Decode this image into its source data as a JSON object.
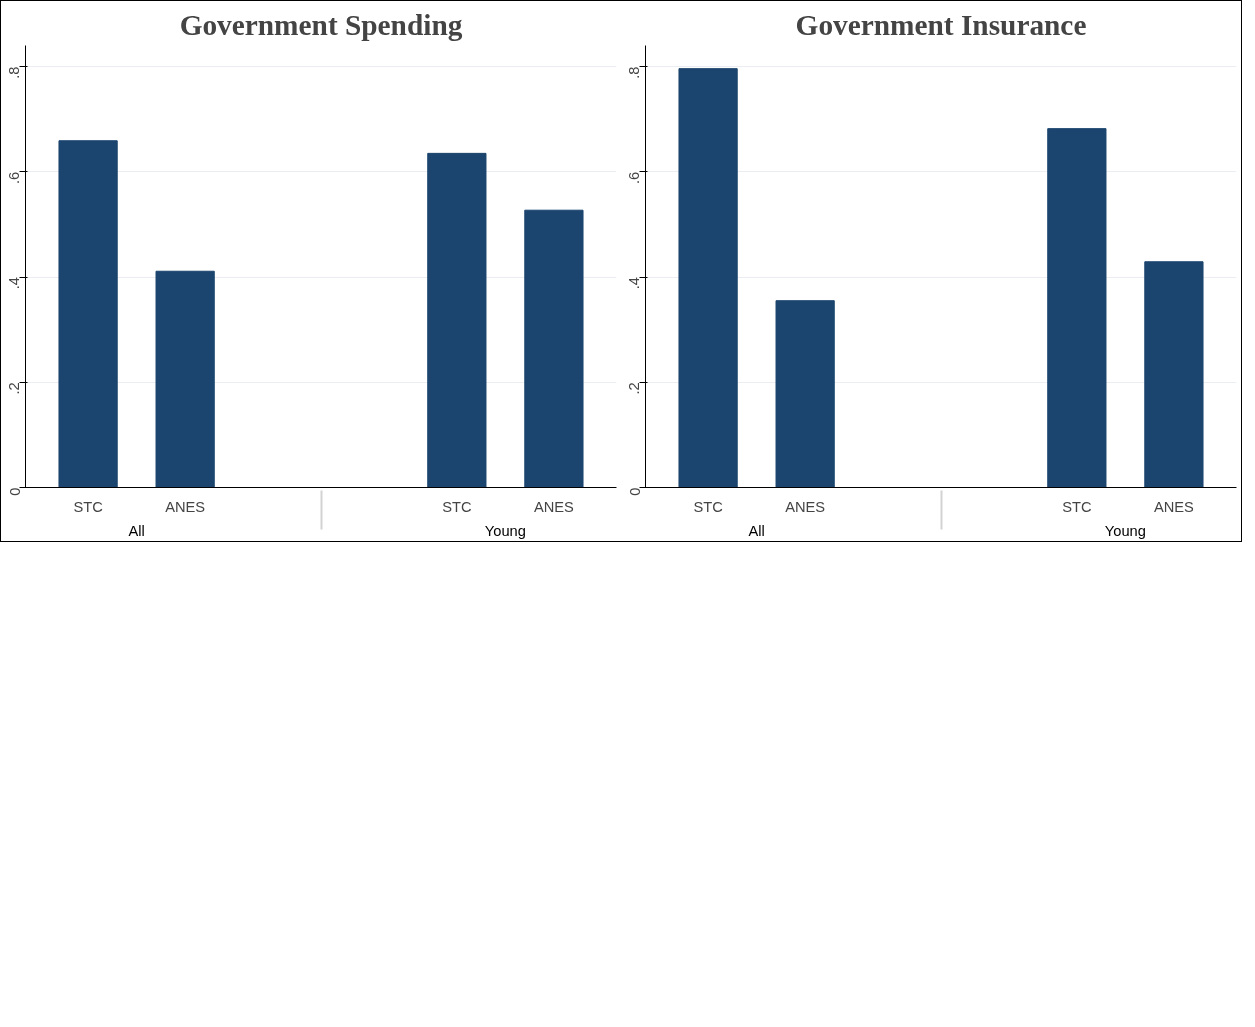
{
  "chart_data": [
    {
      "type": "bar",
      "title": "Government Spending",
      "categories": [
        "STC",
        "ANES",
        "STC",
        "ANES"
      ],
      "annotations": [
        "All",
        "Young"
      ],
      "values": [
        0.659,
        0.411,
        0.635,
        0.527
      ],
      "color": "#1b456e",
      "ylim": [
        0,
        0.84
      ],
      "yticks": [
        0,
        {
          "value": 0.2,
          "label": ".2"
        },
        {
          "value": 0.4,
          "label": ".4"
        },
        {
          "value": 0.6,
          "label": ".6"
        },
        {
          "value": 0.8,
          "label": ".8"
        }
      ],
      "grid": "y"
    },
    {
      "type": "bar",
      "title": "Government Insurance",
      "categories": [
        "STC",
        "ANES",
        "STC",
        "ANES"
      ],
      "annotations": [
        "All",
        "Young"
      ],
      "values": [
        0.796,
        0.355,
        0.682,
        0.429
      ],
      "color": "#1b456e",
      "ylim": [
        0,
        0.84
      ],
      "yticks": [
        0,
        {
          "value": 0.2,
          "label": ".2"
        },
        {
          "value": 0.4,
          "label": ".4"
        },
        {
          "value": 0.6,
          "label": ".6"
        },
        {
          "value": 0.8,
          "label": ".8"
        }
      ],
      "grid": "y"
    }
  ]
}
